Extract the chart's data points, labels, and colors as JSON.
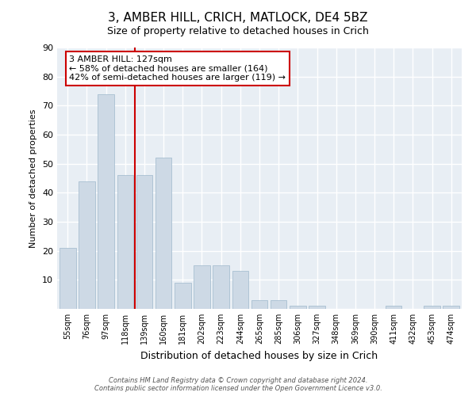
{
  "title": "3, AMBER HILL, CRICH, MATLOCK, DE4 5BZ",
  "subtitle": "Size of property relative to detached houses in Crich",
  "xlabel": "Distribution of detached houses by size in Crich",
  "ylabel": "Number of detached properties",
  "categories": [
    "55sqm",
    "76sqm",
    "97sqm",
    "118sqm",
    "139sqm",
    "160sqm",
    "181sqm",
    "202sqm",
    "223sqm",
    "244sqm",
    "265sqm",
    "285sqm",
    "306sqm",
    "327sqm",
    "348sqm",
    "369sqm",
    "390sqm",
    "411sqm",
    "432sqm",
    "453sqm",
    "474sqm"
  ],
  "values": [
    21,
    44,
    74,
    46,
    46,
    52,
    9,
    15,
    15,
    13,
    3,
    3,
    1,
    1,
    0,
    0,
    0,
    1,
    0,
    1,
    1
  ],
  "bar_color": "#cdd9e5",
  "bar_edge_color": "#9fb8cc",
  "ylim": [
    0,
    90
  ],
  "yticks": [
    0,
    10,
    20,
    30,
    40,
    50,
    60,
    70,
    80,
    90
  ],
  "property_line_x": 3.5,
  "annotation_text": "3 AMBER HILL: 127sqm\n← 58% of detached houses are smaller (164)\n42% of semi-detached houses are larger (119) →",
  "annotation_box_color": "#ffffff",
  "annotation_box_edge": "#cc0000",
  "vline_color": "#cc0000",
  "footer": "Contains HM Land Registry data © Crown copyright and database right 2024.\nContains public sector information licensed under the Open Government Licence v3.0.",
  "background_color": "#ffffff",
  "plot_bg_color": "#e8eef4",
  "grid_color": "#ffffff"
}
